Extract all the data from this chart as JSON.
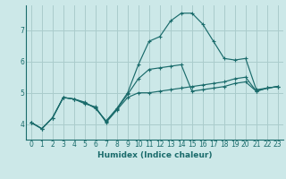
{
  "title": "",
  "xlabel": "Humidex (Indice chaleur)",
  "bg_color": "#cce8e8",
  "grid_color": "#aacccc",
  "line_color": "#1a6b6b",
  "xlim": [
    -0.5,
    23.5
  ],
  "ylim": [
    3.5,
    7.8
  ],
  "yticks": [
    4,
    5,
    6,
    7
  ],
  "xticks": [
    0,
    1,
    2,
    3,
    4,
    5,
    6,
    7,
    8,
    9,
    10,
    11,
    12,
    13,
    14,
    15,
    16,
    17,
    18,
    19,
    20,
    21,
    22,
    23
  ],
  "series": [
    [
      4.05,
      3.85,
      4.2,
      4.85,
      4.8,
      4.65,
      4.55,
      4.05,
      4.45,
      4.85,
      5.0,
      5.0,
      5.05,
      5.1,
      5.15,
      5.2,
      5.25,
      5.3,
      5.35,
      5.45,
      5.5,
      5.05,
      5.15,
      5.2
    ],
    [
      4.05,
      3.85,
      4.2,
      4.85,
      4.8,
      4.7,
      4.5,
      4.1,
      4.5,
      5.0,
      5.9,
      6.65,
      6.8,
      7.3,
      7.55,
      7.55,
      7.2,
      6.65,
      6.1,
      6.05,
      6.1,
      5.1,
      5.15,
      5.2
    ],
    [
      4.05,
      3.85,
      4.2,
      4.85,
      4.8,
      4.68,
      4.52,
      4.08,
      4.48,
      4.95,
      5.45,
      5.75,
      5.8,
      5.85,
      5.9,
      5.05,
      5.1,
      5.15,
      5.2,
      5.3,
      5.35,
      5.05,
      5.15,
      5.2
    ]
  ]
}
